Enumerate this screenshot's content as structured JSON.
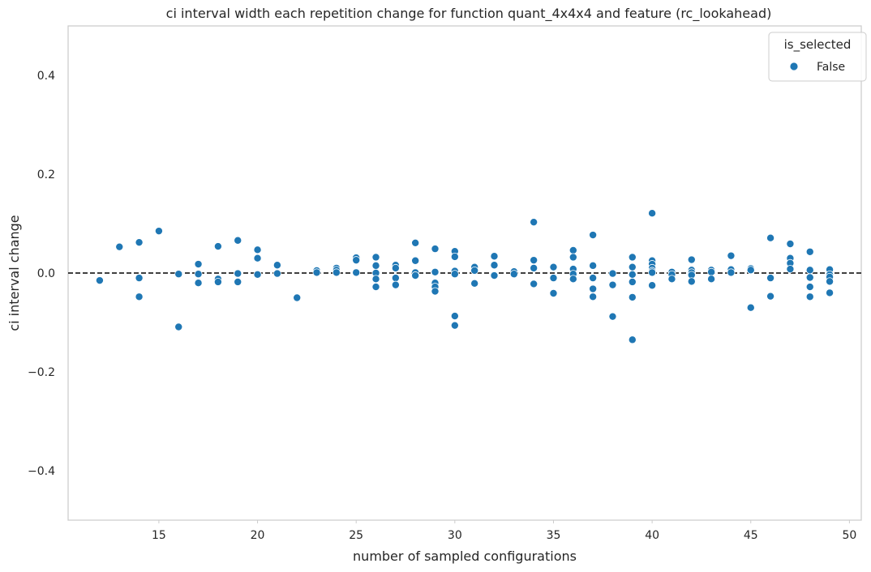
{
  "chart_data": {
    "type": "scatter",
    "title": "ci interval width each repetition change for function quant_4x4x4 and feature (rc_lookahead)",
    "xlabel": "number of sampled configurations",
    "ylabel": "ci interval change",
    "xlim": [
      10.4,
      50.6
    ],
    "ylim": [
      -0.5,
      0.5
    ],
    "xticks": [
      15,
      20,
      25,
      30,
      35,
      40,
      45,
      50
    ],
    "yticks": [
      -0.4,
      -0.2,
      0.0,
      0.2,
      0.4
    ],
    "ytick_labels": [
      "−0.4",
      "−0.2",
      "0.0",
      "0.2",
      "0.4"
    ],
    "grid": false,
    "reference_line": {
      "y": 0,
      "style": "dashed",
      "color": "#000000"
    },
    "legend": {
      "title": "is_selected",
      "placement": "top-right",
      "entries": [
        "False"
      ]
    },
    "series": [
      {
        "name": "False",
        "color": "#1f77b4",
        "points": [
          [
            12,
            -0.015
          ],
          [
            13,
            0.053
          ],
          [
            14,
            0.062
          ],
          [
            14,
            -0.01
          ],
          [
            14,
            -0.048
          ],
          [
            15,
            0.085
          ],
          [
            16,
            -0.002
          ],
          [
            16,
            -0.109
          ],
          [
            17,
            0.018
          ],
          [
            17,
            -0.002
          ],
          [
            17,
            -0.02
          ],
          [
            18,
            0.054
          ],
          [
            18,
            -0.012
          ],
          [
            18,
            -0.018
          ],
          [
            19,
            0.066
          ],
          [
            19,
            -0.001
          ],
          [
            19,
            -0.018
          ],
          [
            20,
            0.047
          ],
          [
            20,
            0.03
          ],
          [
            20,
            -0.003
          ],
          [
            21,
            0.016
          ],
          [
            21,
            -0.001
          ],
          [
            22,
            -0.05
          ],
          [
            23,
            0.005
          ],
          [
            23,
            0.001
          ],
          [
            24,
            0.01
          ],
          [
            24,
            0.006
          ],
          [
            24,
            0.001
          ],
          [
            25,
            0.031
          ],
          [
            25,
            0.026
          ],
          [
            25,
            0.001
          ],
          [
            26,
            0.032
          ],
          [
            26,
            0.015
          ],
          [
            26,
            0.0
          ],
          [
            26,
            -0.012
          ],
          [
            26,
            -0.028
          ],
          [
            27,
            0.016
          ],
          [
            27,
            0.01
          ],
          [
            27,
            -0.01
          ],
          [
            27,
            -0.024
          ],
          [
            28,
            0.061
          ],
          [
            28,
            0.025
          ],
          [
            28,
            0.001
          ],
          [
            28,
            -0.005
          ],
          [
            29,
            0.049
          ],
          [
            29,
            0.002
          ],
          [
            29,
            -0.02
          ],
          [
            29,
            -0.028
          ],
          [
            29,
            -0.037
          ],
          [
            30,
            0.044
          ],
          [
            30,
            0.033
          ],
          [
            30,
            0.004
          ],
          [
            30,
            -0.002
          ],
          [
            30,
            -0.087
          ],
          [
            30,
            -0.106
          ],
          [
            31,
            0.012
          ],
          [
            31,
            0.005
          ],
          [
            31,
            -0.021
          ],
          [
            32,
            0.034
          ],
          [
            32,
            0.016
          ],
          [
            32,
            -0.005
          ],
          [
            33,
            0.003
          ],
          [
            33,
            -0.002
          ],
          [
            34,
            0.103
          ],
          [
            34,
            0.026
          ],
          [
            34,
            0.01
          ],
          [
            34,
            -0.022
          ],
          [
            35,
            0.012
          ],
          [
            35,
            -0.01
          ],
          [
            35,
            -0.041
          ],
          [
            36,
            0.046
          ],
          [
            36,
            0.032
          ],
          [
            36,
            0.008
          ],
          [
            36,
            -0.002
          ],
          [
            36,
            -0.012
          ],
          [
            37,
            0.077
          ],
          [
            37,
            0.015
          ],
          [
            37,
            -0.01
          ],
          [
            37,
            -0.032
          ],
          [
            37,
            -0.048
          ],
          [
            38,
            -0.001
          ],
          [
            38,
            -0.024
          ],
          [
            38,
            -0.088
          ],
          [
            39,
            0.032
          ],
          [
            39,
            0.012
          ],
          [
            39,
            -0.003
          ],
          [
            39,
            -0.018
          ],
          [
            39,
            -0.049
          ],
          [
            39,
            -0.135
          ],
          [
            40,
            0.121
          ],
          [
            40,
            0.025
          ],
          [
            40,
            0.018
          ],
          [
            40,
            0.01
          ],
          [
            40,
            0.004
          ],
          [
            40,
            0.001
          ],
          [
            40,
            -0.025
          ],
          [
            41,
            0.002
          ],
          [
            41,
            -0.003
          ],
          [
            41,
            -0.012
          ],
          [
            42,
            0.027
          ],
          [
            42,
            0.006
          ],
          [
            42,
            0.001
          ],
          [
            42,
            -0.004
          ],
          [
            42,
            -0.017
          ],
          [
            43,
            0.006
          ],
          [
            43,
            0.002
          ],
          [
            43,
            -0.012
          ],
          [
            44,
            0.035
          ],
          [
            44,
            0.007
          ],
          [
            44,
            0.001
          ],
          [
            45,
            0.009
          ],
          [
            45,
            0.006
          ],
          [
            45,
            -0.07
          ],
          [
            46,
            0.071
          ],
          [
            46,
            -0.01
          ],
          [
            46,
            -0.047
          ],
          [
            47,
            0.059
          ],
          [
            47,
            0.03
          ],
          [
            47,
            0.02
          ],
          [
            47,
            0.008
          ],
          [
            48,
            0.043
          ],
          [
            48,
            0.006
          ],
          [
            48,
            -0.009
          ],
          [
            48,
            -0.028
          ],
          [
            48,
            -0.048
          ],
          [
            49,
            0.007
          ],
          [
            49,
            -0.003
          ],
          [
            49,
            -0.008
          ],
          [
            49,
            -0.017
          ],
          [
            49,
            -0.04
          ]
        ]
      }
    ]
  }
}
